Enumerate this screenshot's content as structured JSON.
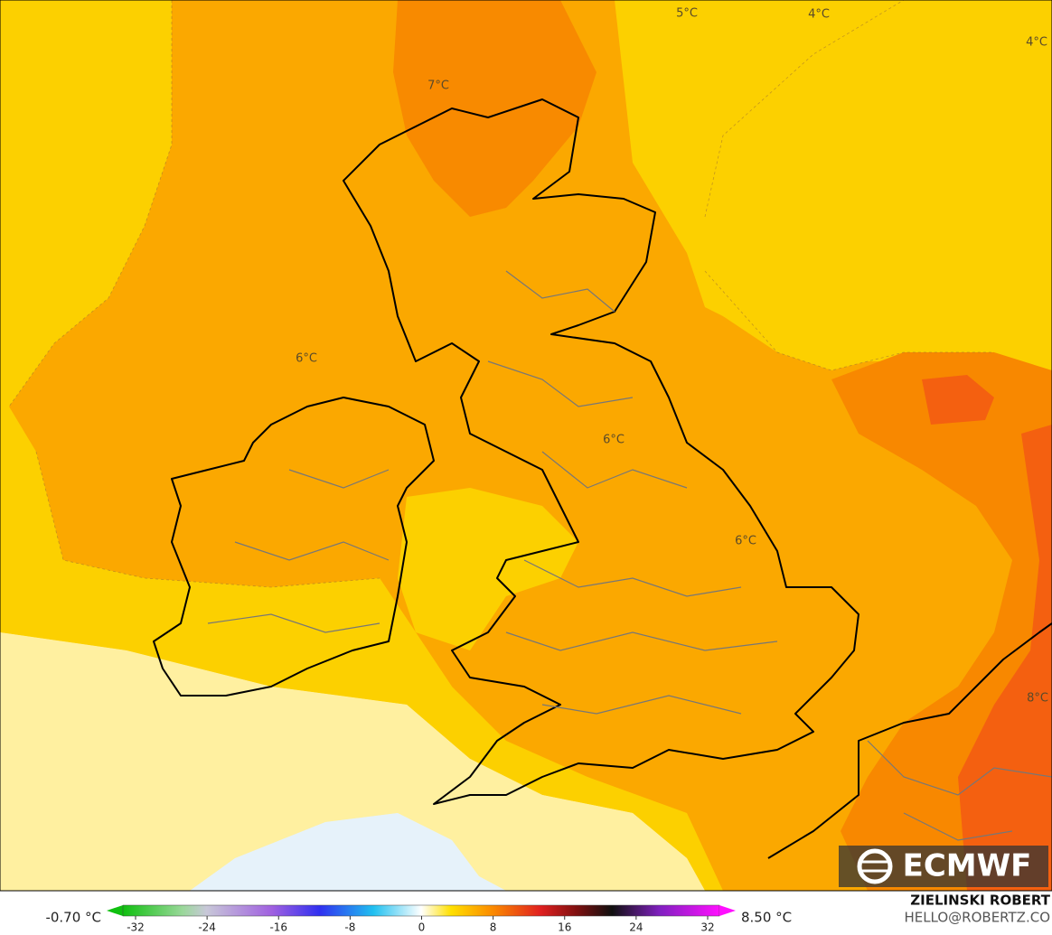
{
  "map": {
    "contour_labels": [
      "5°C",
      "4°C",
      "4°C",
      "7°C",
      "6°C",
      "6°C",
      "6°C",
      "8°C"
    ]
  },
  "colorbar": {
    "min_label": "-0.70 °C",
    "max_label": "8.50 °C",
    "ticks": [
      -32,
      -24,
      -16,
      -8,
      0,
      8,
      16,
      24,
      32
    ]
  },
  "logo": "ECMWF",
  "credits": {
    "author": "ZIELINSKI ROBERT",
    "contact": "HELLO@ROBERTZ.CO"
  }
}
